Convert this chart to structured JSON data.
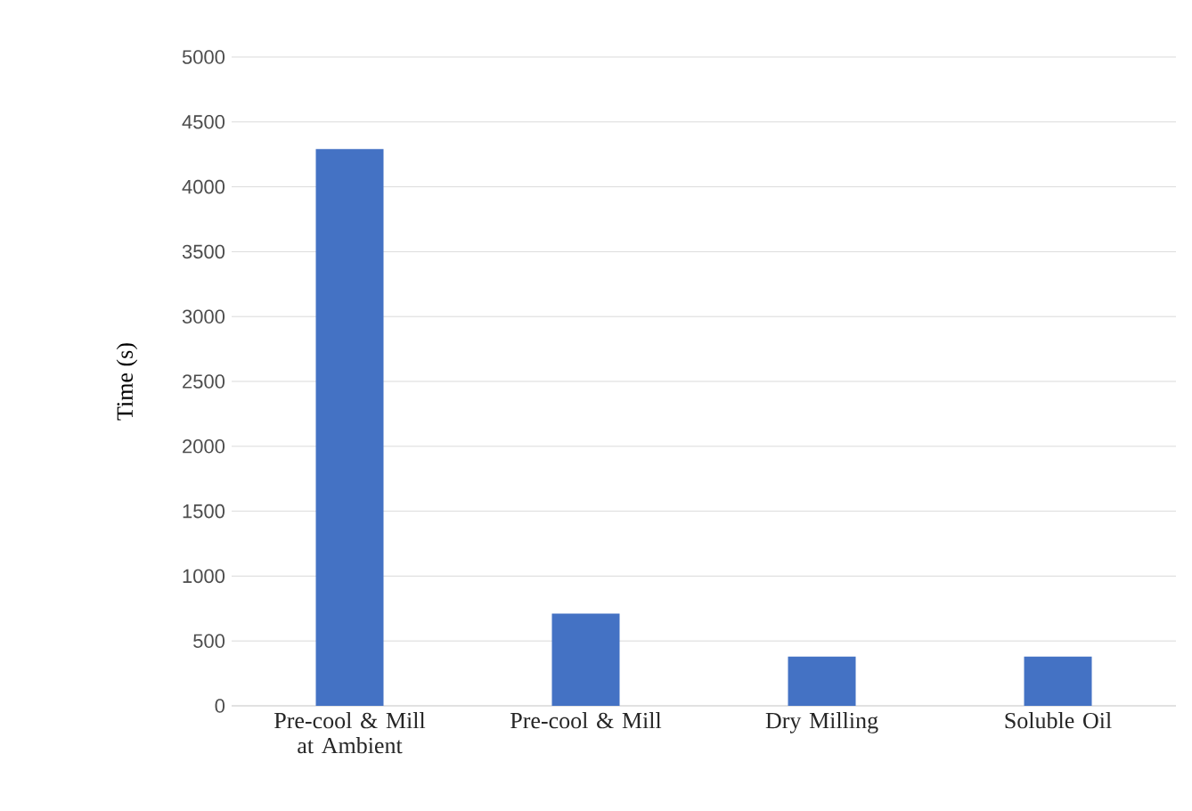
{
  "chart_data": {
    "type": "bar",
    "ylabel": "Time (s)",
    "categories": [
      "Pre-cool & Mill at Ambient",
      "Pre-cool & Mill",
      "Dry Milling",
      "Soluble Oil"
    ],
    "values": [
      4290,
      710,
      380,
      380
    ],
    "color": "#4472c4",
    "ylim": [
      0,
      5000
    ],
    "yticks": [
      0,
      500,
      1000,
      1500,
      2000,
      2500,
      3000,
      3500,
      4000,
      4500,
      5000
    ],
    "grid": "y"
  }
}
